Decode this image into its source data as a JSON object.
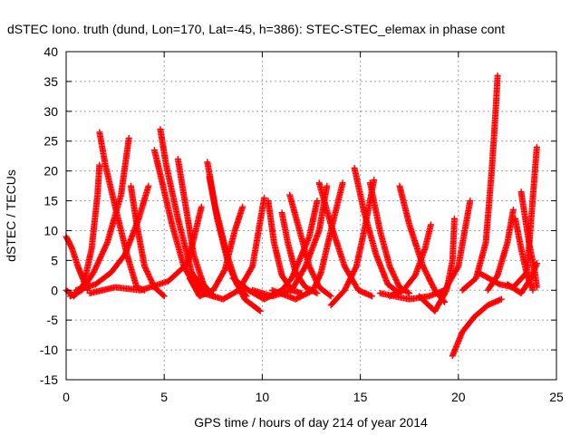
{
  "chart_data": {
    "type": "scatter",
    "title": "dSTEC Iono. truth (dund, Lon=170, Lat=-45, h=386): STEC-STEC_elemax in phase cont",
    "xlabel": "GPS time / hours of day 214 of year 2014",
    "ylabel": "dSTEC  / TECUs",
    "xlim": [
      0,
      25
    ],
    "ylim": [
      -15,
      40
    ],
    "xticks": [
      0,
      5,
      10,
      15,
      20,
      25
    ],
    "yticks": [
      -15,
      -10,
      -5,
      0,
      5,
      10,
      15,
      20,
      25,
      30,
      35,
      40
    ],
    "grid": true,
    "marker": "+",
    "color": "#ff0000",
    "series": [
      {
        "points": [
          [
            0.0,
            9
          ],
          [
            0.3,
            7
          ],
          [
            0.6,
            4
          ],
          [
            0.9,
            1.5
          ],
          [
            1.1,
            0
          ]
        ]
      },
      {
        "points": [
          [
            0.0,
            0
          ],
          [
            0.4,
            -1
          ],
          [
            0.9,
            1
          ],
          [
            1.3,
            7
          ],
          [
            1.6,
            16
          ],
          [
            1.7,
            21
          ]
        ]
      },
      {
        "points": [
          [
            1.7,
            26.5
          ],
          [
            2.0,
            21
          ],
          [
            2.5,
            14
          ],
          [
            3.1,
            6
          ],
          [
            3.6,
            0.5
          ],
          [
            4.0,
            0
          ]
        ]
      },
      {
        "points": [
          [
            0.2,
            -1
          ],
          [
            0.8,
            0
          ],
          [
            1.4,
            3
          ],
          [
            2.1,
            8
          ],
          [
            2.8,
            16
          ],
          [
            3.2,
            25.5
          ]
        ]
      },
      {
        "points": [
          [
            3.3,
            17.5
          ],
          [
            3.6,
            11
          ],
          [
            4.0,
            4
          ],
          [
            4.5,
            0.5
          ],
          [
            5.0,
            -1
          ]
        ]
      },
      {
        "points": [
          [
            0.5,
            0
          ],
          [
            1.5,
            1
          ],
          [
            2.3,
            3
          ],
          [
            3.0,
            6
          ],
          [
            3.7,
            12
          ],
          [
            4.2,
            17.5
          ]
        ]
      },
      {
        "points": [
          [
            4.5,
            23.5
          ],
          [
            4.9,
            18
          ],
          [
            5.4,
            11
          ],
          [
            6.0,
            4
          ],
          [
            6.6,
            0.5
          ],
          [
            7.0,
            -0.5
          ]
        ]
      },
      {
        "points": [
          [
            4.8,
            27
          ],
          [
            5.1,
            21
          ],
          [
            5.7,
            12
          ],
          [
            6.4,
            3
          ],
          [
            7.0,
            0
          ]
        ]
      },
      {
        "points": [
          [
            5.7,
            22
          ],
          [
            6.1,
            14
          ],
          [
            6.5,
            6
          ],
          [
            7.0,
            1
          ],
          [
            7.5,
            -1
          ]
        ]
      },
      {
        "points": [
          [
            1.2,
            -0.5
          ],
          [
            2.5,
            0.5
          ],
          [
            3.8,
            0
          ],
          [
            5.2,
            1.5
          ],
          [
            6.2,
            4.5
          ],
          [
            6.9,
            14
          ]
        ]
      },
      {
        "points": [
          [
            7.2,
            21.5
          ],
          [
            7.6,
            14
          ],
          [
            8.2,
            6
          ],
          [
            8.7,
            1
          ],
          [
            9.2,
            -1
          ]
        ]
      },
      {
        "points": [
          [
            7.3,
            19
          ],
          [
            7.7,
            12
          ],
          [
            8.3,
            4
          ],
          [
            9.1,
            -1.5
          ],
          [
            9.9,
            -3.5
          ]
        ]
      },
      {
        "points": [
          [
            6.3,
            2
          ],
          [
            6.8,
            -1
          ],
          [
            7.5,
            0
          ],
          [
            8.1,
            3.5
          ],
          [
            8.6,
            10
          ],
          [
            9.0,
            14
          ]
        ]
      },
      {
        "points": [
          [
            7.0,
            -0.5
          ],
          [
            8.0,
            -1.5
          ],
          [
            8.8,
            0
          ],
          [
            9.5,
            4
          ],
          [
            10.1,
            15.5
          ]
        ]
      },
      {
        "points": [
          [
            10.3,
            15
          ],
          [
            10.6,
            8
          ],
          [
            11.0,
            2.5
          ],
          [
            11.5,
            0
          ],
          [
            12.0,
            -0.5
          ]
        ]
      },
      {
        "points": [
          [
            8.5,
            2
          ],
          [
            9.3,
            0
          ],
          [
            10.1,
            -1.5
          ],
          [
            11.0,
            0
          ],
          [
            11.5,
            2
          ],
          [
            12.4,
            9
          ],
          [
            12.8,
            15
          ]
        ]
      },
      {
        "points": [
          [
            11.0,
            13
          ],
          [
            11.3,
            8
          ],
          [
            11.7,
            3
          ],
          [
            12.2,
            0.5
          ],
          [
            12.8,
            -0.5
          ]
        ]
      },
      {
        "points": [
          [
            9.5,
            0
          ],
          [
            10.5,
            -1
          ],
          [
            11.5,
            0
          ],
          [
            12.2,
            4
          ],
          [
            12.9,
            10
          ],
          [
            13.3,
            17.5
          ]
        ]
      },
      {
        "points": [
          [
            11.4,
            16
          ],
          [
            11.9,
            10
          ],
          [
            12.4,
            4
          ],
          [
            12.9,
            0.5
          ],
          [
            13.5,
            -1
          ]
        ]
      },
      {
        "points": [
          [
            10.5,
            0
          ],
          [
            11.7,
            -1.5
          ],
          [
            12.6,
            0
          ],
          [
            13.0,
            3
          ],
          [
            13.5,
            10
          ],
          [
            14.1,
            18
          ]
        ]
      },
      {
        "points": [
          [
            12.9,
            18
          ],
          [
            13.5,
            11
          ],
          [
            14.2,
            4
          ],
          [
            14.9,
            0
          ],
          [
            15.6,
            -1
          ]
        ]
      },
      {
        "points": [
          [
            13.5,
            -2.5
          ],
          [
            14.2,
            0
          ],
          [
            14.8,
            4
          ],
          [
            15.2,
            10
          ],
          [
            15.7,
            18.5
          ]
        ]
      },
      {
        "points": [
          [
            14.7,
            20.5
          ],
          [
            15.2,
            13
          ],
          [
            15.8,
            6
          ],
          [
            16.4,
            1
          ],
          [
            17.0,
            -0.5
          ]
        ]
      },
      {
        "points": [
          [
            15.5,
            18
          ],
          [
            16.0,
            10
          ],
          [
            16.5,
            4
          ],
          [
            17.0,
            0.5
          ],
          [
            17.5,
            -0.5
          ]
        ]
      },
      {
        "points": [
          [
            16.5,
            -1
          ],
          [
            17.2,
            0
          ],
          [
            17.8,
            2.5
          ],
          [
            18.3,
            7
          ],
          [
            18.6,
            11
          ]
        ]
      },
      {
        "points": [
          [
            17.0,
            17.5
          ],
          [
            17.5,
            11
          ],
          [
            18.2,
            4
          ],
          [
            18.8,
            0
          ],
          [
            19.3,
            -2
          ]
        ]
      },
      {
        "points": [
          [
            18.0,
            -1
          ],
          [
            18.8,
            -3.5
          ],
          [
            19.4,
            0
          ],
          [
            19.7,
            5
          ],
          [
            19.8,
            12
          ]
        ]
      },
      {
        "points": [
          [
            16.0,
            -0.5
          ],
          [
            17.5,
            -1.5
          ],
          [
            18.5,
            -1
          ],
          [
            19.3,
            0
          ],
          [
            20.0,
            4
          ],
          [
            20.6,
            15
          ]
        ]
      },
      {
        "points": [
          [
            19.7,
            -11
          ],
          [
            20.2,
            -7
          ],
          [
            20.8,
            -4.5
          ],
          [
            21.5,
            -2.5
          ],
          [
            22.2,
            -1.5
          ]
        ]
      },
      {
        "points": [
          [
            20.2,
            0
          ],
          [
            20.9,
            2
          ],
          [
            21.4,
            8
          ],
          [
            21.7,
            20
          ],
          [
            21.9,
            30
          ],
          [
            22.0,
            36
          ]
        ]
      },
      {
        "points": [
          [
            21.5,
            0
          ],
          [
            22.0,
            2.5
          ],
          [
            22.5,
            8
          ],
          [
            22.8,
            13.5
          ]
        ]
      },
      {
        "points": [
          [
            22.9,
            12
          ],
          [
            23.2,
            7
          ],
          [
            23.5,
            2.5
          ],
          [
            23.8,
            0
          ]
        ]
      },
      {
        "points": [
          [
            21.0,
            3
          ],
          [
            22.1,
            1
          ],
          [
            22.8,
            0.5
          ],
          [
            23.5,
            3
          ],
          [
            24.0,
            24
          ]
        ]
      },
      {
        "points": [
          [
            23.2,
            16.5
          ],
          [
            23.6,
            8
          ],
          [
            23.9,
            3
          ],
          [
            24.0,
            0.5
          ]
        ]
      },
      {
        "points": [
          [
            22.5,
            1
          ],
          [
            23.2,
            -0.5
          ],
          [
            23.7,
            2
          ],
          [
            24.0,
            4.5
          ]
        ]
      }
    ]
  }
}
